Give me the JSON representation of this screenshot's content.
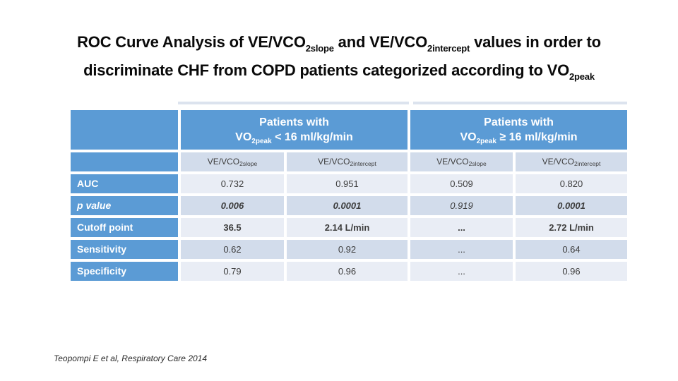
{
  "title": {
    "line1": {
      "t1": "ROC Curve Analysis of VE/VCO",
      "s1": "2slope",
      "t2": " and VE/VCO",
      "s2": "2intercept",
      "t3": " values in order to"
    },
    "line2": {
      "t1": "discriminate CHF from COPD patients categorized according to VO",
      "s1": "2peak"
    }
  },
  "table": {
    "group_headers": [
      {
        "line1": "Patients with",
        "pre": "VO",
        "sub": "2peak",
        "post": " < 16 ml/kg/min"
      },
      {
        "line1": "Patients with",
        "pre": "VO",
        "sub": "2peak",
        "post": " ≥ 16 ml/kg/min"
      }
    ],
    "col_headers": [
      {
        "pre": "VE/VCO",
        "sub": "2slope"
      },
      {
        "pre": "VE/VCO",
        "sub": "2intercept"
      },
      {
        "pre": "VE/VCO",
        "sub": "2slope"
      },
      {
        "pre": "VE/VCO",
        "sub": "2intercept"
      }
    ],
    "rows": [
      {
        "label": "AUC",
        "values": [
          "0.732",
          "0.951",
          "0.509",
          "0.820"
        ]
      },
      {
        "label": "p value",
        "values": [
          "0.006",
          "0.0001",
          "0.919",
          "0.0001"
        ]
      },
      {
        "label": "Cutoff point",
        "values": [
          "36.5",
          "2.14 L/min",
          "...",
          "2.72 L/min"
        ]
      },
      {
        "label": "Sensitivity",
        "values": [
          "0.62",
          "0.92",
          "...",
          "0.64"
        ]
      },
      {
        "label": "Specificity",
        "values": [
          "0.79",
          "0.96",
          "...",
          "0.96"
        ]
      }
    ]
  },
  "citation": "Teopompi E et al, Respiratory Care 2014",
  "colors": {
    "header_blue": "#5B9BD5",
    "band_light": "#E9EDF5",
    "band_dark": "#D2DCEB",
    "background": "#FFFFFF"
  }
}
